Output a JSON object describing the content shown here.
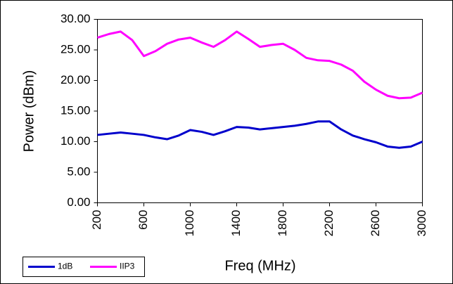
{
  "chart_data": {
    "type": "line",
    "x_label": "Freq (MHz)",
    "y_label": "Power (dBm)",
    "x": [
      200,
      300,
      400,
      500,
      600,
      700,
      800,
      900,
      1000,
      1100,
      1200,
      1300,
      1400,
      1500,
      1600,
      1700,
      1800,
      1900,
      2000,
      2100,
      2200,
      2300,
      2400,
      2500,
      2600,
      2700,
      2800,
      2900,
      3000
    ],
    "series": [
      {
        "name": "1dB",
        "color": "#0000cc",
        "values": [
          11.1,
          11.3,
          11.5,
          11.3,
          11.1,
          10.7,
          10.4,
          11,
          11.9,
          11.6,
          11.1,
          11.7,
          12.4,
          12.3,
          12,
          12.2,
          12.4,
          12.6,
          12.9,
          13.3,
          13.3,
          12,
          11,
          10.4,
          9.9,
          9.2,
          9,
          9.2,
          10
        ]
      },
      {
        "name": "IIP3",
        "color": "#ff00ff",
        "values": [
          27,
          27.6,
          28,
          26.6,
          24,
          24.8,
          26,
          26.7,
          27,
          26.2,
          25.5,
          26.6,
          28,
          26.8,
          25.5,
          25.8,
          26,
          25,
          23.7,
          23.3,
          23.2,
          22.6,
          21.6,
          19.8,
          18.5,
          17.5,
          17.1,
          17.2,
          18
        ]
      }
    ],
    "xlim": [
      200,
      3000
    ],
    "xticks": [
      200,
      600,
      1000,
      1400,
      1800,
      2200,
      2600,
      3000
    ],
    "ylim": [
      0,
      30
    ],
    "yticks": [
      {
        "value": 0,
        "label": "0.00"
      },
      {
        "value": 5,
        "label": "5.00"
      },
      {
        "value": 10,
        "label": "10.00"
      },
      {
        "value": 15,
        "label": "15.00"
      },
      {
        "value": 20,
        "label": "20.00"
      },
      {
        "value": 25,
        "label": "25.00"
      },
      {
        "value": 30,
        "label": "30.00"
      }
    ],
    "grid": false,
    "legend": "bottom-left"
  }
}
